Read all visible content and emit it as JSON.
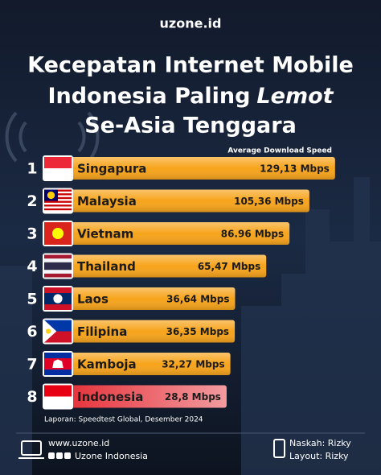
{
  "brand": "uzone.id",
  "chart_data": {
    "type": "bar",
    "orientation": "horizontal",
    "title": [
      "Kecepatan Internet Mobile",
      "Indonesia Paling",
      "Lemot",
      "Se-Asia Tenggara"
    ],
    "subtitle": "Average Download Speed",
    "ranks": [
      1,
      2,
      3,
      4,
      5,
      6,
      7,
      8
    ],
    "categories": [
      "Singapura",
      "Malaysia",
      "Vietnam",
      "Thailand",
      "Laos",
      "Filipina",
      "Kamboja",
      "Indonesia"
    ],
    "values": [
      129.13,
      105.36,
      86.96,
      65.47,
      36.64,
      36.35,
      32.27,
      28.8
    ],
    "value_labels": [
      "129,13 Mbps",
      "105,36 Mbps",
      "86.96 Mbps",
      "65,47 Mbps",
      "36,64 Mbps",
      "36,35 Mbps",
      "32,27 Mbps",
      "28,8 Mbps"
    ],
    "colors": [
      "#f7a41c",
      "#f7a41c",
      "#f7a41c",
      "#f7a41c",
      "#f7a41c",
      "#f7a41c",
      "#f7a41c",
      "#e3222b"
    ],
    "xlim": [
      -140,
      130
    ],
    "source": "Laporan: Speedtest Global, Desember 2024"
  },
  "footer": {
    "website": "www.uzone.id",
    "social": "Uzone Indonesia",
    "writer": "Naskah: Rizky",
    "layout": "Layout: Rizky"
  }
}
